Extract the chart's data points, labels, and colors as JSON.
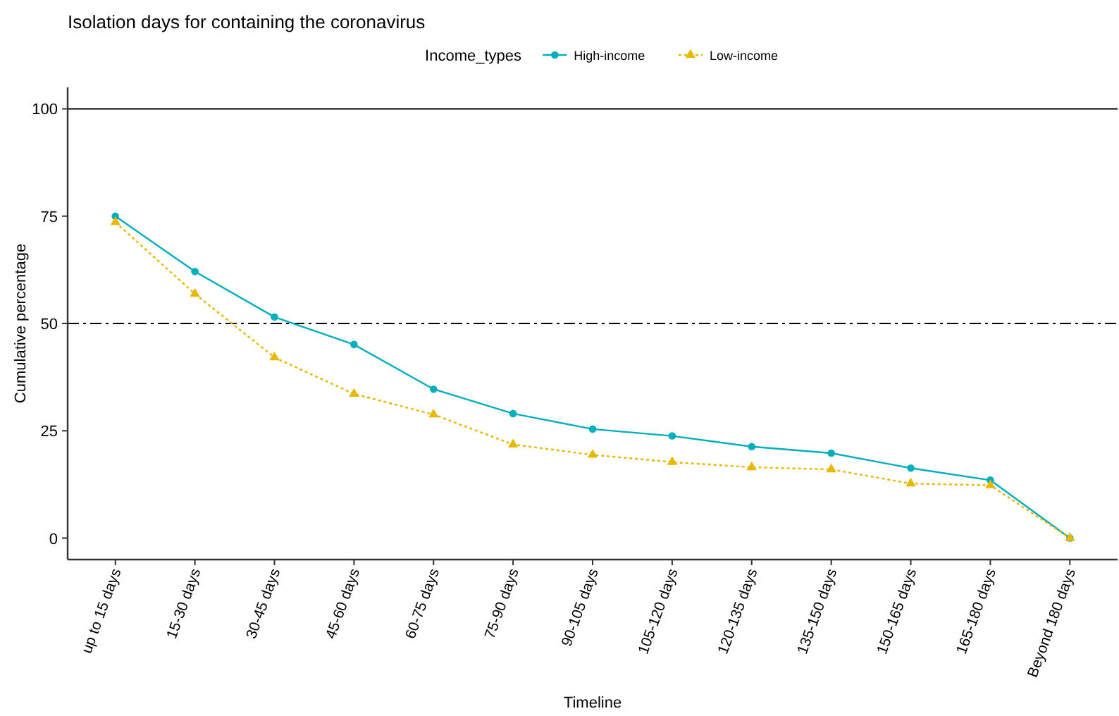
{
  "chart_data": {
    "type": "line",
    "title": "Isolation days for containing the coronavirus",
    "xlabel": "Timeline",
    "ylabel": "Cumulative percentage",
    "legend_title": "Income_types",
    "legend": "top",
    "categories": [
      "up to 15 days",
      "15-30 days",
      "30-45 days",
      "45-60 days",
      "60-75 days",
      "75-90 days",
      "90-105 days",
      "105-120 days",
      "120-135 days",
      "135-150 days",
      "150-165 days",
      "165-180 days",
      "Beyond 180 days"
    ],
    "series": [
      {
        "name": "High-income",
        "color": "#00afbb",
        "marker": "circle",
        "line_style": "solid",
        "values": [
          75.0,
          62.1,
          51.5,
          45.1,
          34.7,
          29.0,
          25.4,
          23.8,
          21.3,
          19.8,
          16.3,
          13.5,
          0
        ]
      },
      {
        "name": "Low-income",
        "color": "#e7b800",
        "marker": "triangle",
        "line_style": "dotted",
        "values": [
          73.6,
          56.9,
          42.1,
          33.6,
          28.8,
          21.8,
          19.4,
          17.7,
          16.5,
          16.0,
          12.7,
          12.3,
          0
        ]
      }
    ],
    "ylim": [
      -5,
      105
    ],
    "yticks": [
      0,
      25,
      50,
      75,
      100
    ],
    "grid": false,
    "ref_lines": [
      {
        "axis": "y",
        "value": 100,
        "label": null,
        "line_style": "solid",
        "color": "#000000"
      },
      {
        "axis": "y",
        "value": 50,
        "label": null,
        "line_style": "dotdash",
        "color": "#000000"
      }
    ]
  }
}
